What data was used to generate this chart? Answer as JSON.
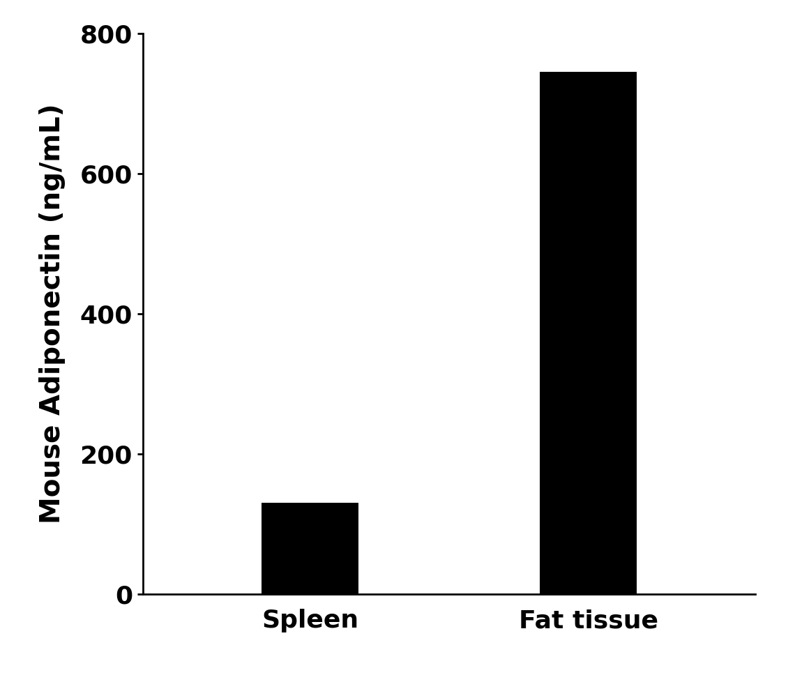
{
  "categories": [
    "Spleen",
    "Fat tissue"
  ],
  "values": [
    130.21,
    745.9
  ],
  "bar_colors": [
    "#000000",
    "#000000"
  ],
  "ylabel": "Mouse Adiponectin (ng/mL)",
  "xlabel": "",
  "ylim": [
    0,
    800
  ],
  "yticks": [
    0,
    200,
    400,
    600,
    800
  ],
  "bar_width": 0.35,
  "background_color": "#ffffff",
  "ylabel_fontsize": 28,
  "tick_fontsize": 26,
  "xlabel_fontsize": 26,
  "tick_label_fontweight": "bold",
  "ylabel_fontweight": "bold",
  "axis_linewidth": 2.0,
  "figsize": [
    11.4,
    9.68
  ],
  "dpi": 100
}
